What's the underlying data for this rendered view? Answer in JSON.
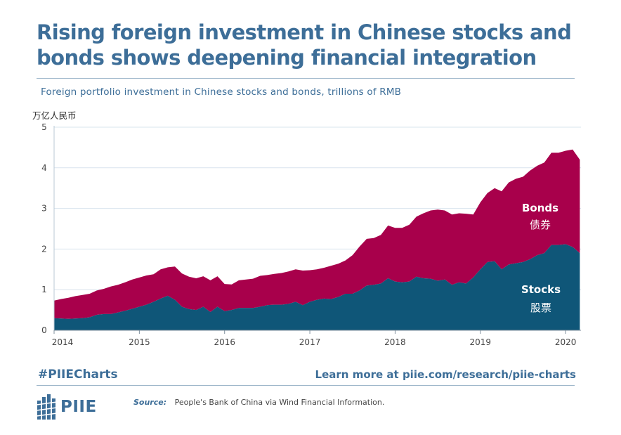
{
  "title": "Rising foreign investment in Chinese stocks and bonds shows deepening financial integration",
  "subtitle": "Foreign portfolio investment in Chinese stocks and bonds, trillions of RMB",
  "unit_cn": "万亿人民币",
  "footer": {
    "hashtag": "#PIIECharts",
    "learn_more": "Learn more at piie.com/research/piie-charts",
    "logo_text": "PIIE",
    "source_label": "Source:",
    "source_text": "People's Bank of China via Wind Financial Information."
  },
  "colors": {
    "brand": "#3d6e98",
    "stocks": "#0f5678",
    "bonds": "#a8004b"
  },
  "chart_data": {
    "type": "area",
    "stacked": true,
    "x_year_ticks": [
      "2014",
      "2015",
      "2016",
      "2017",
      "2018",
      "2019",
      "2020"
    ],
    "y_ticks": [
      "5",
      "4",
      "3",
      "2",
      "1",
      "0"
    ],
    "ylim": [
      0,
      5
    ],
    "grid": true,
    "x": [
      2014.0,
      2014.083,
      2014.167,
      2014.25,
      2014.333,
      2014.417,
      2014.5,
      2014.583,
      2014.667,
      2014.75,
      2014.833,
      2014.917,
      2015.0,
      2015.083,
      2015.167,
      2015.25,
      2015.333,
      2015.417,
      2015.5,
      2015.583,
      2015.667,
      2015.75,
      2015.833,
      2015.917,
      2016.0,
      2016.083,
      2016.167,
      2016.25,
      2016.333,
      2016.417,
      2016.5,
      2016.583,
      2016.667,
      2016.75,
      2016.833,
      2016.917,
      2017.0,
      2017.083,
      2017.167,
      2017.25,
      2017.333,
      2017.417,
      2017.5,
      2017.583,
      2017.667,
      2017.75,
      2017.833,
      2017.917,
      2018.0,
      2018.083,
      2018.167,
      2018.25,
      2018.333,
      2018.417,
      2018.5,
      2018.583,
      2018.667,
      2018.75,
      2018.833,
      2018.917,
      2019.0,
      2019.083,
      2019.167,
      2019.25,
      2019.333,
      2019.417,
      2019.5,
      2019.583,
      2019.667,
      2019.75,
      2019.833,
      2019.917,
      2020.0,
      2020.083,
      2020.167
    ],
    "series": [
      {
        "name": "Stocks",
        "name_cn": "股票",
        "values": [
          0.3,
          0.29,
          0.28,
          0.29,
          0.3,
          0.32,
          0.38,
          0.4,
          0.4,
          0.44,
          0.48,
          0.53,
          0.58,
          0.63,
          0.7,
          0.78,
          0.85,
          0.75,
          0.58,
          0.52,
          0.5,
          0.58,
          0.45,
          0.58,
          0.47,
          0.5,
          0.55,
          0.55,
          0.55,
          0.58,
          0.62,
          0.63,
          0.63,
          0.65,
          0.7,
          0.62,
          0.7,
          0.75,
          0.78,
          0.77,
          0.82,
          0.9,
          0.9,
          0.98,
          1.1,
          1.12,
          1.15,
          1.28,
          1.2,
          1.18,
          1.2,
          1.32,
          1.28,
          1.27,
          1.22,
          1.25,
          1.12,
          1.18,
          1.15,
          1.3,
          1.5,
          1.68,
          1.7,
          1.5,
          1.62,
          1.65,
          1.68,
          1.75,
          1.85,
          1.9,
          2.1,
          2.1,
          2.12,
          2.05,
          1.9
        ]
      },
      {
        "name": "Bonds",
        "name_cn": "债券",
        "values": [
          0.43,
          0.48,
          0.52,
          0.55,
          0.57,
          0.58,
          0.6,
          0.62,
          0.68,
          0.68,
          0.7,
          0.72,
          0.72,
          0.72,
          0.68,
          0.72,
          0.7,
          0.82,
          0.82,
          0.8,
          0.78,
          0.75,
          0.78,
          0.75,
          0.67,
          0.63,
          0.68,
          0.7,
          0.72,
          0.76,
          0.74,
          0.76,
          0.78,
          0.8,
          0.8,
          0.85,
          0.78,
          0.75,
          0.76,
          0.82,
          0.82,
          0.82,
          0.95,
          1.08,
          1.15,
          1.15,
          1.2,
          1.3,
          1.32,
          1.34,
          1.4,
          1.48,
          1.6,
          1.68,
          1.75,
          1.7,
          1.73,
          1.7,
          1.72,
          1.55,
          1.65,
          1.7,
          1.8,
          1.92,
          2.02,
          2.08,
          2.1,
          2.18,
          2.2,
          2.23,
          2.27,
          2.27,
          2.3,
          2.4,
          2.3
        ]
      }
    ]
  }
}
